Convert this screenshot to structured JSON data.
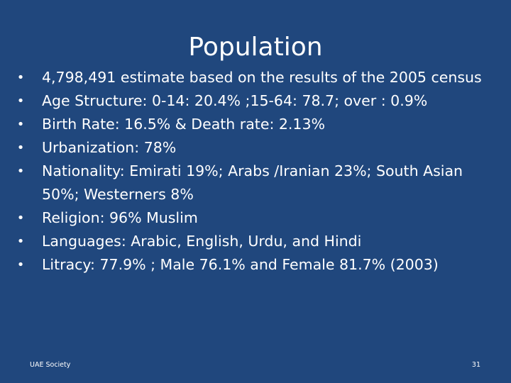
{
  "slide": {
    "title": "Population",
    "bullet_symbol": "•",
    "bullets": [
      {
        "text": "4,798,491 estimate based on the results of the 2005 census"
      },
      {
        "text": "Age Structure:  0-14: 20.4% ;15-64: 78.7; over : 0.9%"
      },
      {
        "text": "Birth Rate: 16.5% & Death rate: 2.13%"
      },
      {
        "text": "Urbanization: 78%"
      },
      {
        "text": "Nationality: Emirati 19%; Arabs /Iranian 23%; South Asian 50%; Westerners 8%"
      },
      {
        "text": "Religion: 96% Muslim"
      },
      {
        "text": "Languages: Arabic, English, Urdu, and Hindi"
      },
      {
        "text": "Litracy: 77.9% ; Male 76.1% and Female 81.7% (2003)"
      }
    ],
    "footer_left": "UAE Society",
    "page_number": "31"
  },
  "colors": {
    "background": "#20477d",
    "text": "#ffffff"
  }
}
